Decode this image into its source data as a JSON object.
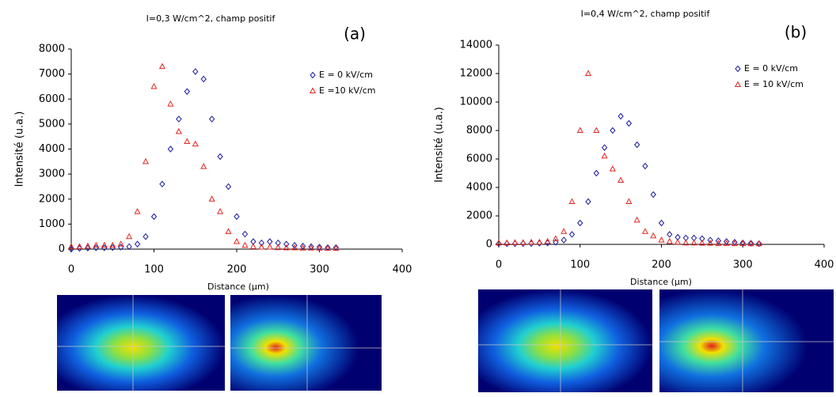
{
  "chart_data": [
    {
      "type": "scatter",
      "title": "I=0,3 W/cm^2, champ positif",
      "annotation": "(a)",
      "x_label": "Distance (µm)",
      "y_label": "Intensité (u.a.)",
      "xlim": [
        0,
        400
      ],
      "xticks": [
        0,
        100,
        200,
        300,
        400
      ],
      "ylim": [
        0,
        8000
      ],
      "yticks": [
        0,
        1000,
        2000,
        3000,
        4000,
        5000,
        6000,
        7000,
        8000
      ],
      "legend": "upper-right",
      "x": [
        0,
        10,
        20,
        30,
        40,
        50,
        60,
        70,
        80,
        90,
        100,
        110,
        120,
        130,
        140,
        150,
        160,
        170,
        180,
        190,
        200,
        210,
        220,
        230,
        240,
        250,
        260,
        270,
        280,
        290,
        300,
        310,
        320
      ],
      "series": [
        {
          "name": "E = 0 kV/cm",
          "color": "#1a1a9e",
          "marker": "diamond",
          "values": [
            0,
            30,
            40,
            50,
            50,
            60,
            80,
            100,
            200,
            500,
            1300,
            2600,
            4000,
            5200,
            6300,
            7100,
            6800,
            5200,
            3700,
            2500,
            1300,
            600,
            300,
            250,
            300,
            250,
            200,
            150,
            120,
            100,
            80,
            60,
            60
          ]
        },
        {
          "name": "E =10 kV/cm",
          "color": "#e8231f",
          "marker": "triangle",
          "values": [
            100,
            100,
            120,
            150,
            150,
            150,
            200,
            500,
            1500,
            3500,
            6500,
            7300,
            5800,
            4700,
            4300,
            4200,
            3300,
            2000,
            1500,
            700,
            300,
            150,
            100,
            80,
            80,
            60,
            50,
            50,
            40,
            40,
            40,
            30,
            30
          ]
        }
      ]
    },
    {
      "type": "scatter",
      "title": "I=0,4 W/cm^2, champ positif",
      "annotation": "(b)",
      "x_label": "Distance (µm)",
      "y_label": "Intensité (u.a.)",
      "xlim": [
        0,
        400
      ],
      "xticks": [
        0,
        100,
        200,
        300,
        400
      ],
      "ylim": [
        0,
        14000
      ],
      "yticks": [
        0,
        2000,
        4000,
        6000,
        8000,
        10000,
        12000,
        14000
      ],
      "legend": "upper-right",
      "x": [
        0,
        10,
        20,
        30,
        40,
        50,
        60,
        70,
        80,
        90,
        100,
        110,
        120,
        130,
        140,
        150,
        160,
        170,
        180,
        190,
        200,
        210,
        220,
        230,
        240,
        250,
        260,
        270,
        280,
        290,
        300,
        310,
        320
      ],
      "series": [
        {
          "name": "E = 0 kV/cm",
          "color": "#1a1a9e",
          "marker": "diamond",
          "values": [
            50,
            50,
            50,
            60,
            60,
            80,
            100,
            150,
            300,
            700,
            1500,
            3000,
            5000,
            6800,
            8000,
            9000,
            8500,
            7000,
            5500,
            3500,
            1500,
            700,
            500,
            450,
            450,
            400,
            300,
            250,
            200,
            150,
            100,
            80,
            50
          ]
        },
        {
          "name": "E = 10 kV/cm",
          "color": "#e8231f",
          "marker": "triangle",
          "values": [
            100,
            100,
            120,
            120,
            150,
            150,
            200,
            400,
            900,
            3000,
            8000,
            12000,
            8000,
            6200,
            5300,
            4500,
            3000,
            1700,
            900,
            600,
            300,
            200,
            150,
            100,
            100,
            80,
            80,
            60,
            60,
            50,
            50,
            40,
            40
          ]
        }
      ]
    }
  ]
}
